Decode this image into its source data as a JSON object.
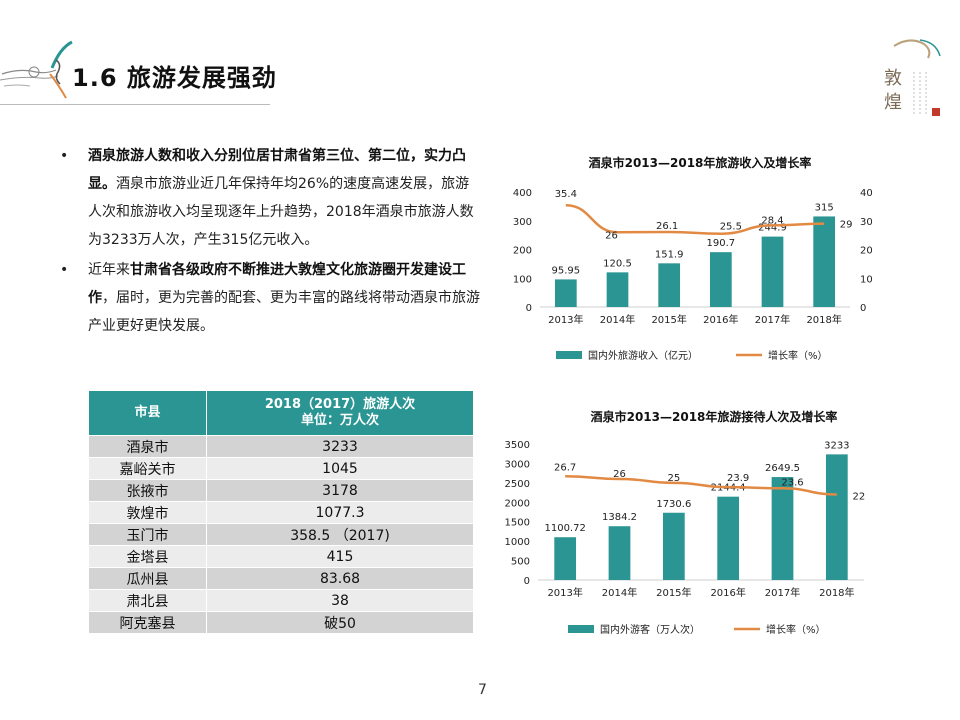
{
  "slide": {
    "title": "1.6 旅游发展强劲",
    "page_number": "7",
    "logo_text": "敦煌"
  },
  "bullets": [
    {
      "bold": "酒泉旅游人数和收入分别位居甘肃省第三位、第二位，实力凸显。",
      "text": "酒泉市旅游业近几年保持年均26%的速度高速发展，旅游人次和旅游收入均呈现逐年上升趋势，2018年酒泉市旅游人数为3233万人次，产生315亿元收入。"
    },
    {
      "lead": "近年来",
      "bold": "甘肃省各级政府不断推进大敦煌文化旅游圈开发建设工作",
      "text": "，届时，更为完善的配套、更为丰富的路线将带动酒泉市旅游产业更好更快发展。"
    }
  ],
  "table": {
    "headers": [
      "市县",
      "2018（2017）旅游人次\n单位：万人次"
    ],
    "rows": [
      [
        "酒泉市",
        "3233"
      ],
      [
        "嘉峪关市",
        "1045"
      ],
      [
        "张掖市",
        "3178"
      ],
      [
        "敦煌市",
        "1077.3"
      ],
      [
        "玉门市",
        "358.5 （2017)"
      ],
      [
        "金塔县",
        "415"
      ],
      [
        "瓜州县",
        "83.68"
      ],
      [
        "肃北县",
        "38"
      ],
      [
        "阿克塞县",
        "破50"
      ]
    ]
  },
  "colors": {
    "teal": "#2a9592",
    "orange": "#e28a43",
    "header_bg": "#2a9592"
  },
  "chart_data": [
    {
      "type": "bar",
      "title": "酒泉市2013—2018年旅游收入及增长率",
      "categories": [
        "2013年",
        "2014年",
        "2015年",
        "2016年",
        "2017年",
        "2018年"
      ],
      "series": [
        {
          "name": "国内外旅游收入（亿元）",
          "kind": "bar",
          "axis": "left",
          "values": [
            95.95,
            120.5,
            151.9,
            190.7,
            244.9,
            315
          ]
        },
        {
          "name": "增长率（%）",
          "kind": "line",
          "axis": "right",
          "values": [
            35.4,
            26,
            26.1,
            25.5,
            28.4,
            29
          ]
        }
      ],
      "ylim": [
        0,
        400
      ],
      "yticks": [
        0,
        100,
        200,
        300,
        400
      ],
      "y2lim": [
        0,
        40
      ],
      "y2ticks": [
        0,
        10,
        20,
        30,
        40
      ],
      "legend": "bottom"
    },
    {
      "type": "bar",
      "title": "酒泉市2013—2018年旅游接待人次及增长率",
      "categories": [
        "2013年",
        "2014年",
        "2015年",
        "2016年",
        "2017年",
        "2018年"
      ],
      "series": [
        {
          "name": "国内外游客（万人次）",
          "kind": "bar",
          "axis": "left",
          "values": [
            1100.72,
            1384.2,
            1730.6,
            2144.4,
            2649.5,
            3233
          ]
        },
        {
          "name": "增长率（%）",
          "kind": "line",
          "axis": "right",
          "values": [
            26.7,
            26,
            25,
            23.9,
            23.6,
            22
          ]
        }
      ],
      "ylim": [
        0,
        3500
      ],
      "yticks": [
        0,
        500,
        1000,
        1500,
        2000,
        2500,
        3000,
        3500
      ],
      "y2lim": [
        0,
        35
      ],
      "legend": "bottom"
    }
  ]
}
